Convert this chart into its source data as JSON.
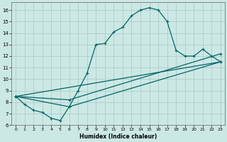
{
  "xlabel": "Humidex (Indice chaleur)",
  "bg_color": "#cce8e4",
  "grid_color": "#b0cccc",
  "line_color": "#006666",
  "xlim": [
    -0.5,
    23.5
  ],
  "ylim": [
    6.0,
    16.7
  ],
  "xticks": [
    0,
    1,
    2,
    3,
    4,
    5,
    6,
    7,
    8,
    9,
    10,
    11,
    12,
    13,
    14,
    15,
    16,
    17,
    18,
    19,
    20,
    21,
    22,
    23
  ],
  "yticks": [
    6,
    7,
    8,
    9,
    10,
    11,
    12,
    13,
    14,
    15,
    16
  ],
  "line1_x": [
    0,
    1,
    2,
    3,
    4,
    5,
    6,
    7,
    8,
    9,
    10,
    11,
    12,
    13,
    14,
    15,
    16,
    17,
    18,
    19,
    20,
    21,
    22,
    23
  ],
  "line1_y": [
    8.5,
    7.8,
    7.3,
    7.1,
    6.6,
    6.4,
    7.6,
    9.0,
    10.5,
    13.0,
    13.1,
    14.1,
    14.5,
    15.5,
    16.0,
    16.2,
    16.0,
    15.0,
    12.5,
    12.0,
    12.0,
    12.6,
    12.0,
    11.5
  ],
  "line2_x": [
    0,
    23
  ],
  "line2_y": [
    8.5,
    11.5
  ],
  "line3_x": [
    0,
    6,
    23
  ],
  "line3_y": [
    8.5,
    7.6,
    11.5
  ],
  "line4_x": [
    0,
    6,
    23
  ],
  "line4_y": [
    8.5,
    8.2,
    12.2
  ],
  "marker": "+"
}
